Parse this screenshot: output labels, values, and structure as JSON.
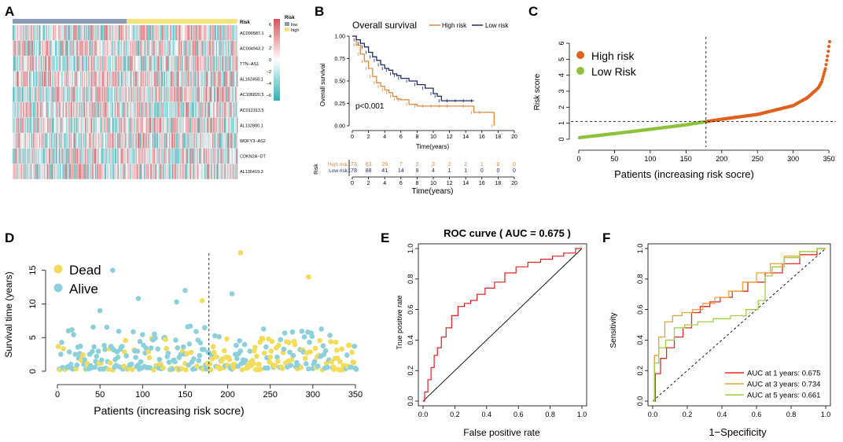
{
  "panels": {
    "A": {
      "letter": "A",
      "risk_label": "Risk",
      "genes": [
        "AC090587.1",
        "AC004943.2",
        "TTN−AS1",
        "AL162458.1",
        "AC106820.5",
        "AC012313.5",
        "AL132800.1",
        "WDFY3−AS2",
        "CDKN2A−DT",
        "AL136419.3"
      ],
      "legend_title": "Risk",
      "legend_items": [
        {
          "label": "low",
          "color": "#8a9bb5"
        },
        {
          "label": "high",
          "color": "#f5e47a"
        }
      ],
      "colorbar_ticks": [
        "6",
        "4",
        "2",
        "0",
        "−2",
        "−4",
        "−6"
      ],
      "colors": {
        "high_expr": "#d9515a",
        "mid": "#ffffff",
        "low_expr": "#2ab3b6"
      }
    },
    "B": {
      "letter": "B",
      "title": "Overall survival",
      "legend": [
        "High risk",
        "Low risk"
      ],
      "ylabel": "Overall survival",
      "xlabel": "Time(years)",
      "pvalue": "p<0.001",
      "yticks": [
        "0.00",
        "0.25",
        "0.50",
        "0.75",
        "1.00"
      ],
      "xticks": [
        "0",
        "2",
        "4",
        "6",
        "8",
        "10",
        "12",
        "14",
        "16",
        "18",
        "20"
      ],
      "risk_table_label": "Risk",
      "risk_rows": [
        {
          "label": "High risk",
          "color": "#e8873b",
          "values": [
            "173",
            "63",
            "26",
            "7",
            "3",
            "3",
            "2",
            "2",
            "1",
            "0",
            "0"
          ]
        },
        {
          "label": "Low risk",
          "color": "#1f2a6b",
          "values": [
            "178",
            "88",
            "41",
            "14",
            "9",
            "4",
            "1",
            "1",
            "0",
            "0",
            "0"
          ]
        }
      ]
    },
    "C": {
      "letter": "C",
      "ylabel": "Risk score",
      "xlabel": "Patients (increasing risk socre)",
      "legend": [
        {
          "label": "High risk",
          "color": "#e2601c"
        },
        {
          "label": "Low Risk",
          "color": "#8fc23a"
        }
      ],
      "xticks": [
        "0",
        "50",
        "100",
        "150",
        "200",
        "250",
        "300",
        "350"
      ],
      "yticks": [
        "0",
        "1",
        "2",
        "3",
        "4",
        "5",
        "6"
      ]
    },
    "D": {
      "letter": "D",
      "ylabel": "Survival time (years)",
      "xlabel": "Patients (increasing risk socre)",
      "legend": [
        {
          "label": "Dead",
          "color": "#f2dc5a"
        },
        {
          "label": "Alive",
          "color": "#8cd0dc"
        }
      ],
      "xticks": [
        "0",
        "50",
        "100",
        "150",
        "200",
        "250",
        "300",
        "350"
      ],
      "yticks": [
        "0",
        "5",
        "10",
        "15"
      ]
    },
    "E": {
      "letter": "E",
      "title": "ROC curve ( AUC =  0.675 )",
      "ylabel": "True positive rate",
      "xlabel": "False positive rate",
      "ticks": [
        "0.0",
        "0.2",
        "0.4",
        "0.6",
        "0.8",
        "1.0"
      ]
    },
    "F": {
      "letter": "F",
      "ylabel": "Sensitivity",
      "xlabel": "1−Specificity",
      "ticks": [
        "0.0",
        "0.2",
        "0.4",
        "0.6",
        "0.8",
        "1.0"
      ],
      "legend": [
        {
          "label": "AUC at 1 years: 0.675",
          "color": "#e52a2a"
        },
        {
          "label": "AUC at 3 years: 0.734",
          "color": "#f0a030"
        },
        {
          "label": "AUC at 5 years: 0.661",
          "color": "#9cd040"
        }
      ]
    }
  },
  "chart_data": [
    {
      "type": "heatmap",
      "panel": "A",
      "rows": [
        "AC090587.1",
        "AC004943.2",
        "TTN−AS1",
        "AL162458.1",
        "AC106820.5",
        "AC012313.5",
        "AL132800.1",
        "WDFY3−AS2",
        "CDKN2A−DT",
        "AL136419.3"
      ],
      "groups": [
        {
          "name": "low",
          "n": 178
        },
        {
          "name": "high",
          "n": 173
        }
      ],
      "value_range": [
        -6,
        6
      ]
    },
    {
      "type": "line",
      "panel": "B",
      "title": "Overall survival",
      "xlabel": "Time(years)",
      "ylabel": "Overall survival",
      "xlim": [
        0,
        20
      ],
      "ylim": [
        0,
        1
      ],
      "series": [
        {
          "name": "High risk",
          "color": "#e8873b",
          "x": [
            0,
            0.5,
            1,
            1.5,
            2,
            2.5,
            3,
            3.5,
            4,
            4.5,
            5,
            5.5,
            6,
            7,
            8,
            9,
            10,
            11,
            12,
            14,
            15,
            16,
            17.5
          ],
          "y": [
            1,
            0.9,
            0.8,
            0.72,
            0.64,
            0.55,
            0.48,
            0.44,
            0.4,
            0.37,
            0.33,
            0.3,
            0.29,
            0.24,
            0.22,
            0.22,
            0.22,
            0.22,
            0.22,
            0.22,
            0.15,
            0.15,
            0
          ]
        },
        {
          "name": "Low risk",
          "color": "#1f2a6b",
          "x": [
            0,
            0.5,
            1,
            1.5,
            2,
            2.5,
            3,
            3.5,
            4,
            4.5,
            5,
            5.5,
            6,
            7,
            8,
            9,
            10,
            10.5,
            11,
            12,
            13,
            14,
            15
          ],
          "y": [
            1,
            0.96,
            0.92,
            0.88,
            0.82,
            0.77,
            0.73,
            0.68,
            0.64,
            0.62,
            0.58,
            0.56,
            0.53,
            0.5,
            0.46,
            0.42,
            0.36,
            0.33,
            0.28,
            0.28,
            0.28,
            0.28,
            0.28
          ]
        }
      ],
      "pvalue": "p<0.001"
    },
    {
      "type": "scatter",
      "panel": "C",
      "xlabel": "Patients (increasing risk socre)",
      "ylabel": "Risk score",
      "xlim": [
        0,
        351
      ],
      "ylim": [
        0,
        6.2
      ],
      "cutoff_patient": 178,
      "cutoff_score": 1.1,
      "n_patients": 351,
      "curve_points": [
        [
          1,
          0.1
        ],
        [
          50,
          0.35
        ],
        [
          100,
          0.62
        ],
        [
          150,
          0.9
        ],
        [
          178,
          1.1
        ],
        [
          200,
          1.25
        ],
        [
          250,
          1.55
        ],
        [
          300,
          2.1
        ],
        [
          320,
          2.6
        ],
        [
          335,
          3.2
        ],
        [
          340,
          3.6
        ],
        [
          345,
          4.4
        ],
        [
          348,
          5.2
        ],
        [
          351,
          6.1
        ]
      ]
    },
    {
      "type": "scatter",
      "panel": "D",
      "xlabel": "Patients (increasing risk socre)",
      "ylabel": "Survival time (years)",
      "xlim": [
        0,
        351
      ],
      "ylim": [
        0,
        18
      ],
      "cutoff_patient": 178,
      "notable_points": [
        [
          65,
          15
        ],
        [
          215,
          17.6
        ],
        [
          295,
          14
        ],
        [
          50,
          9
        ],
        [
          150,
          12
        ],
        [
          205,
          11.5
        ],
        [
          170,
          10.5
        ],
        [
          95,
          10.8
        ],
        [
          140,
          10.3
        ]
      ]
    },
    {
      "type": "line",
      "panel": "E",
      "title": "ROC curve ( AUC =  0.675 )",
      "xlabel": "False positive rate",
      "ylabel": "True positive rate",
      "auc": 0.675,
      "x": [
        0,
        0.02,
        0.04,
        0.06,
        0.08,
        0.1,
        0.13,
        0.16,
        0.2,
        0.24,
        0.28,
        0.32,
        0.36,
        0.42,
        0.48,
        0.55,
        0.62,
        0.7,
        0.78,
        0.85,
        0.92,
        1.0
      ],
      "y": [
        0,
        0.06,
        0.14,
        0.22,
        0.3,
        0.35,
        0.42,
        0.48,
        0.56,
        0.62,
        0.64,
        0.66,
        0.7,
        0.74,
        0.78,
        0.84,
        0.88,
        0.91,
        0.93,
        0.95,
        0.97,
        1.0
      ]
    },
    {
      "type": "line",
      "panel": "F",
      "xlabel": "1−Specificity",
      "ylabel": "Sensitivity",
      "series": [
        {
          "name": "AUC at 1 years: 0.675",
          "color": "#e52a2a",
          "x": [
            0,
            0.03,
            0.06,
            0.1,
            0.15,
            0.2,
            0.25,
            0.3,
            0.36,
            0.42,
            0.5,
            0.6,
            0.7,
            0.8,
            0.9,
            1.0
          ],
          "y": [
            0,
            0.18,
            0.28,
            0.35,
            0.42,
            0.48,
            0.58,
            0.62,
            0.65,
            0.68,
            0.72,
            0.78,
            0.84,
            0.9,
            0.96,
            1.0
          ]
        },
        {
          "name": "AUC at 3 years: 0.734",
          "color": "#f0a030",
          "x": [
            0,
            0.02,
            0.05,
            0.09,
            0.14,
            0.2,
            0.26,
            0.32,
            0.4,
            0.48,
            0.56,
            0.64,
            0.72,
            0.8,
            0.9,
            1.0
          ],
          "y": [
            0,
            0.3,
            0.42,
            0.52,
            0.56,
            0.58,
            0.6,
            0.64,
            0.68,
            0.72,
            0.78,
            0.84,
            0.9,
            0.95,
            0.98,
            1.0
          ]
        },
        {
          "name": "AUC at 5 years: 0.661",
          "color": "#9cd040",
          "x": [
            0,
            0.02,
            0.05,
            0.1,
            0.15,
            0.22,
            0.3,
            0.4,
            0.5,
            0.58,
            0.64,
            0.66,
            0.72,
            0.8,
            0.9,
            1.0
          ],
          "y": [
            0,
            0.25,
            0.35,
            0.4,
            0.48,
            0.5,
            0.52,
            0.54,
            0.56,
            0.6,
            0.66,
            0.82,
            0.88,
            0.94,
            0.98,
            1.0
          ]
        }
      ]
    }
  ]
}
